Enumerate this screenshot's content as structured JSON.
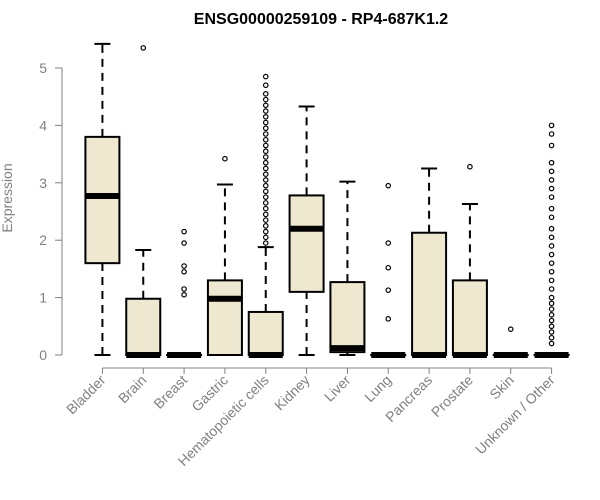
{
  "chart_data": {
    "type": "boxplot",
    "title": "ENSG00000259109 - RP4-687K1.2",
    "ylabel": "Expression",
    "xlabel": "",
    "ylim": [
      0,
      5.5
    ],
    "yticks": [
      0,
      1,
      2,
      3,
      4,
      5
    ],
    "box_color": "#EEE8D0",
    "categories": [
      "Bladder",
      "Brain",
      "Breast",
      "Gastric",
      "Hematopoietic cells",
      "Kidney",
      "Liver",
      "Lung",
      "Pancreas",
      "Prostate",
      "Skin",
      "Unknown / Other"
    ],
    "boxes": [
      {
        "category": "Bladder",
        "whisker_low": 0.0,
        "q1": 1.6,
        "median": 2.77,
        "q3": 3.8,
        "whisker_high": 5.42,
        "outliers": []
      },
      {
        "category": "Brain",
        "whisker_low": 0.0,
        "q1": 0.0,
        "median": 0.0,
        "q3": 0.98,
        "whisker_high": 1.83,
        "outliers": [
          5.35
        ]
      },
      {
        "category": "Breast",
        "whisker_low": 0.0,
        "q1": 0.0,
        "median": 0.0,
        "q3": 0.0,
        "whisker_high": 0.0,
        "outliers": [
          2.15,
          1.95,
          1.55,
          1.45,
          1.15,
          1.05
        ]
      },
      {
        "category": "Gastric",
        "whisker_low": 0.0,
        "q1": 0.0,
        "median": 0.98,
        "q3": 1.3,
        "whisker_high": 2.97,
        "outliers": [
          3.42
        ]
      },
      {
        "category": "Hematopoietic cells",
        "whisker_low": 0.0,
        "q1": 0.0,
        "median": 0.0,
        "q3": 0.75,
        "whisker_high": 1.88,
        "outliers": [
          4.85,
          4.7,
          4.55,
          4.45,
          4.35,
          4.25,
          4.15,
          4.05,
          3.95,
          3.85,
          3.75,
          3.65,
          3.55,
          3.45,
          3.35,
          3.25,
          3.15,
          3.05,
          2.95,
          2.85,
          2.75,
          2.65,
          2.55,
          2.45,
          2.35,
          2.25,
          2.15,
          2.05,
          1.95
        ]
      },
      {
        "category": "Kidney",
        "whisker_low": 0.0,
        "q1": 1.1,
        "median": 2.2,
        "q3": 2.78,
        "whisker_high": 4.33,
        "outliers": []
      },
      {
        "category": "Liver",
        "whisker_low": 0.0,
        "q1": 0.05,
        "median": 0.12,
        "q3": 1.27,
        "whisker_high": 3.02,
        "outliers": []
      },
      {
        "category": "Lung",
        "whisker_low": 0.0,
        "q1": 0.0,
        "median": 0.0,
        "q3": 0.0,
        "whisker_high": 0.0,
        "outliers": [
          2.95,
          1.95,
          1.52,
          1.13,
          0.63
        ]
      },
      {
        "category": "Pancreas",
        "whisker_low": 0.0,
        "q1": 0.0,
        "median": 0.0,
        "q3": 2.13,
        "whisker_high": 3.25,
        "outliers": []
      },
      {
        "category": "Prostate",
        "whisker_low": 0.0,
        "q1": 0.0,
        "median": 0.0,
        "q3": 1.3,
        "whisker_high": 2.63,
        "outliers": [
          3.28
        ]
      },
      {
        "category": "Skin",
        "whisker_low": 0.0,
        "q1": 0.0,
        "median": 0.0,
        "q3": 0.0,
        "whisker_high": 0.0,
        "outliers": [
          0.45
        ]
      },
      {
        "category": "Unknown / Other",
        "whisker_low": 0.0,
        "q1": 0.0,
        "median": 0.0,
        "q3": 0.0,
        "whisker_high": 0.0,
        "outliers": [
          4.0,
          3.85,
          3.65,
          3.35,
          3.2,
          3.05,
          2.9,
          2.75,
          2.55,
          2.4,
          2.2,
          2.05,
          1.9,
          1.75,
          1.6,
          1.45,
          1.3,
          1.15,
          1.0,
          0.9,
          0.8,
          0.7,
          0.6,
          0.5,
          0.4,
          0.3,
          0.2
        ]
      }
    ]
  }
}
